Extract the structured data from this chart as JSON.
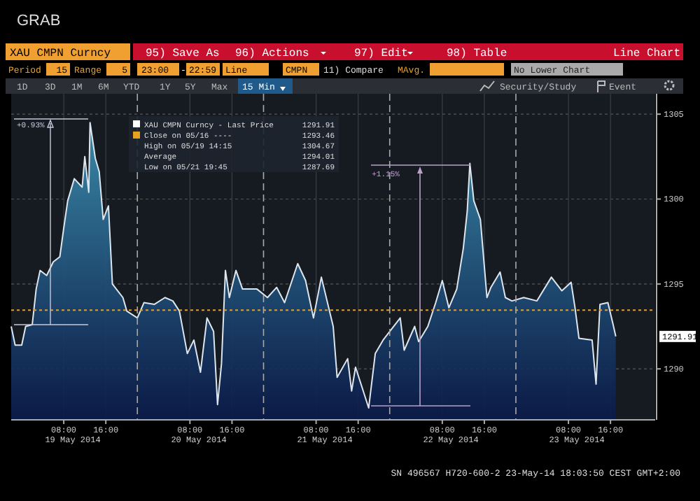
{
  "chart_data": {
    "type": "area",
    "title": "GRAB",
    "x": [
      "2014-05-18T22:00",
      "2014-05-18T22:45",
      "2014-05-19T00:00",
      "2014-05-19T00:45",
      "2014-05-19T02:00",
      "2014-05-19T02:45",
      "2014-05-19T03:30",
      "2014-05-19T04:45",
      "2014-05-19T06:00",
      "2014-05-19T07:15",
      "2014-05-19T08:00",
      "2014-05-19T08:45",
      "2014-05-19T10:00",
      "2014-05-19T11:30",
      "2014-05-19T12:00",
      "2014-05-19T12:45",
      "2014-05-19T13:00",
      "2014-05-19T14:00",
      "2014-05-19T14:45",
      "2014-05-19T15:30",
      "2014-05-19T16:30",
      "2014-05-19T17:15",
      "2014-05-19T19:15",
      "2014-05-19T20:00",
      "2014-05-19T22:00",
      "2014-05-19T23:15",
      "2014-05-20T01:15",
      "2014-05-20T03:15",
      "2014-05-20T04:45",
      "2014-05-20T06:00",
      "2014-05-20T07:30",
      "2014-05-20T08:45",
      "2014-05-20T10:00",
      "2014-05-20T11:15",
      "2014-05-20T12:30",
      "2014-05-20T13:15",
      "2014-05-20T14:00",
      "2014-05-20T14:45",
      "2014-05-20T15:30",
      "2014-05-20T16:45",
      "2014-05-20T18:00",
      "2014-05-20T20:45",
      "2014-05-20T22:45",
      "2014-05-21T00:30",
      "2014-05-21T02:00",
      "2014-05-21T04:30",
      "2014-05-21T06:00",
      "2014-05-21T07:30",
      "2014-05-21T09:00",
      "2014-05-21T11:15",
      "2014-05-21T12:00",
      "2014-05-21T14:00",
      "2014-05-21T14:45",
      "2014-05-21T15:30",
      "2014-05-21T18:00",
      "2014-05-21T19:15",
      "2014-05-21T20:45",
      "2014-05-22T00:00",
      "2014-05-22T00:45",
      "2014-05-22T02:45",
      "2014-05-22T03:30",
      "2014-05-22T05:15",
      "2014-05-22T06:45",
      "2014-05-22T08:00",
      "2014-05-22T09:15",
      "2014-05-22T10:45",
      "2014-05-22T12:00",
      "2014-05-22T12:45",
      "2014-05-22T13:15",
      "2014-05-22T14:00",
      "2014-05-22T15:15",
      "2014-05-22T16:30",
      "2014-05-22T17:15",
      "2014-05-22T19:00",
      "2014-05-22T20:00",
      "2014-05-22T21:15",
      "2014-05-22T23:30",
      "2014-05-23T02:00",
      "2014-05-23T04:45",
      "2014-05-23T06:45",
      "2014-05-23T08:30",
      "2014-05-23T09:15",
      "2014-05-23T10:00",
      "2014-05-23T12:30",
      "2014-05-23T13:15",
      "2014-05-23T14:00",
      "2014-05-23T15:30",
      "2014-05-23T16:30",
      "2014-05-23T17:00"
    ],
    "series": [
      {
        "name": "XAU CMPN Curncy - Last Price",
        "color": "#3a8aa8",
        "values": [
          1292.5,
          1291.4,
          1291.4,
          1292.5,
          1292.6,
          1294.7,
          1295.8,
          1295.5,
          1296.3,
          1296.6,
          1298.3,
          1299.9,
          1301.2,
          1300.7,
          1302.5,
          1300.4,
          1304.5,
          1302.4,
          1301.6,
          1298.8,
          1299.6,
          1295.0,
          1294.2,
          1293.4,
          1293.0,
          1293.9,
          1293.8,
          1294.2,
          1294.0,
          1293.4,
          1290.9,
          1291.7,
          1289.8,
          1293.0,
          1292.2,
          1287.9,
          1290.3,
          1295.8,
          1294.2,
          1295.8,
          1294.7,
          1294.7,
          1294.2,
          1294.8,
          1293.9,
          1296.2,
          1295.2,
          1293.0,
          1295.4,
          1292.5,
          1289.5,
          1290.6,
          1288.7,
          1290.1,
          1287.7,
          1290.9,
          1291.7,
          1293.0,
          1291.1,
          1292.5,
          1291.6,
          1292.5,
          1293.9,
          1295.2,
          1293.6,
          1294.7,
          1297.1,
          1299.3,
          1302.1,
          1299.9,
          1298.8,
          1294.2,
          1294.8,
          1295.7,
          1294.2,
          1294.0,
          1294.2,
          1294.0,
          1295.4,
          1294.6,
          1295.1,
          1293.6,
          1291.8,
          1291.7,
          1289.1,
          1293.8,
          1293.9,
          1292.6,
          1291.91
        ]
      }
    ],
    "xlim": [
      "2014-05-18T22:00",
      "2014-05-24T00:30"
    ],
    "xticks": [
      {
        "value": "2014-05-19T08:00",
        "label": "08:00"
      },
      {
        "value": "2014-05-19T16:00",
        "label": "16:00"
      },
      {
        "value": "2014-05-20T08:00",
        "label": "08:00"
      },
      {
        "value": "2014-05-20T16:00",
        "label": "16:00"
      },
      {
        "value": "2014-05-21T08:00",
        "label": "08:00"
      },
      {
        "value": "2014-05-21T16:00",
        "label": "16:00"
      },
      {
        "value": "2014-05-22T08:00",
        "label": "08:00"
      },
      {
        "value": "2014-05-22T16:00",
        "label": "16:00"
      },
      {
        "value": "2014-05-23T08:00",
        "label": "08:00"
      },
      {
        "value": "2014-05-23T16:00",
        "label": "16:00"
      }
    ],
    "ylim": [
      1287,
      1306.2
    ],
    "yticks": [
      1290,
      1295,
      1300,
      1305
    ],
    "grid": true,
    "legend": "top left",
    "ref_lines": [
      {
        "axis": "y",
        "value": 1293.46,
        "label": "Close on 05/16 ----",
        "color": "#e8a020",
        "line_style": "dotted"
      },
      {
        "axis": "x",
        "value": "2014-05-19T22:00",
        "line_style": "dashed"
      },
      {
        "axis": "x",
        "value": "2014-05-20T22:00",
        "line_style": "dashed"
      },
      {
        "axis": "x",
        "value": "2014-05-21T22:00",
        "line_style": "dashed"
      },
      {
        "axis": "x",
        "value": "2014-05-22T22:00",
        "line_style": "dashed"
      }
    ],
    "annotations": [
      "XAU CMPN Curncy",
      "95) Save As",
      "96) Actions",
      "97) Edit",
      "98) Table",
      "Line Chart",
      "Period",
      "15",
      "Range",
      "5",
      "23:00",
      "-",
      "22:59",
      "Line",
      "CMPN",
      "11) Compare",
      "MAvg.",
      "No Lower Chart",
      "1D",
      "3D",
      "1M",
      "6M",
      "YTD",
      "1Y",
      "5Y",
      "Max",
      "15 Min",
      "Security/Study",
      "Event",
      "1291.91",
      "1293.46",
      "High on 05/19 14:15",
      "1304.67",
      "Average",
      "1294.01",
      "Low on 05/21 19:45",
      "1287.69",
      "+0.93%",
      {
        "text": "+1.15%",
        "x": "2014-05-22T13:15",
        "y": 1302.1
      },
      "SN 496567 H720-600-2 23-May-14 18:03:50 CEST GMT+2:00",
      "19 May 2014",
      "20 May 2014",
      "21 May 2014",
      "22 May 2014",
      "23 May 2014"
    ]
  }
}
